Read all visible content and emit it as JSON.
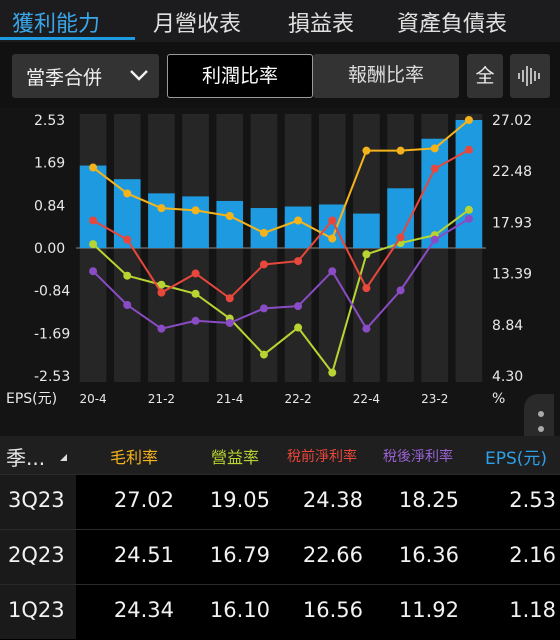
{
  "tabs": [
    {
      "label": "獲利能力",
      "active": true
    },
    {
      "label": "月營收表",
      "active": false
    },
    {
      "label": "損益表",
      "active": false
    },
    {
      "label": "資產負債表",
      "active": false
    }
  ],
  "controls": {
    "dropdown_value": "當季合併",
    "segment_active": "利潤比率",
    "segment_inactive": "報酬比率",
    "full_label": "全"
  },
  "chart_data": {
    "type": "bar+line",
    "categories": [
      "20-4",
      "21-1",
      "21-2",
      "21-3",
      "21-4",
      "22-1",
      "22-2",
      "22-3",
      "22-4",
      "23-1",
      "23-2",
      "23-3"
    ],
    "x_tick_labels": [
      "20-4",
      "21-2",
      "21-4",
      "22-2",
      "22-4",
      "23-2"
    ],
    "left_axis": {
      "ticks": [
        "2.53",
        "1.69",
        "0.84",
        "0.00",
        "-0.84",
        "-1.69",
        "-2.53"
      ],
      "unit": "EPS(元)",
      "ylim": [
        -2.53,
        2.53
      ]
    },
    "right_axis": {
      "ticks": [
        "27.02",
        "22.48",
        "17.93",
        "13.39",
        "8.84",
        "4.30"
      ],
      "unit": "%",
      "ylim": [
        4.3,
        27.02
      ]
    },
    "bars": {
      "name": "EPS(元)",
      "color": "#1e9be0",
      "values": [
        1.63,
        1.36,
        1.08,
        1.02,
        0.93,
        0.79,
        0.82,
        0.86,
        0.68,
        1.18,
        2.16,
        2.53
      ]
    },
    "series": [
      {
        "name": "毛利率",
        "color": "#f5b31b",
        "values": [
          22.8,
          20.5,
          19.2,
          19.0,
          18.5,
          17.0,
          18.1,
          16.5,
          24.3,
          24.3,
          24.5,
          27.02
        ]
      },
      {
        "name": "營益率",
        "color": "#b8d432",
        "values": [
          16.0,
          13.2,
          12.4,
          11.6,
          9.4,
          6.2,
          8.6,
          4.6,
          15.1,
          16.1,
          16.8,
          19.05
        ]
      },
      {
        "name": "稅前淨利率",
        "color": "#e8473c",
        "values": [
          18.1,
          16.4,
          11.7,
          13.4,
          11.2,
          14.2,
          14.5,
          18.1,
          12.1,
          16.6,
          22.7,
          24.38
        ]
      },
      {
        "name": "稅後淨利率",
        "color": "#8a4cc4",
        "values": [
          13.6,
          10.6,
          8.5,
          9.2,
          9.0,
          10.3,
          10.5,
          13.6,
          8.5,
          11.9,
          16.4,
          18.25
        ]
      }
    ]
  },
  "table": {
    "first_header": "季...",
    "headers": [
      {
        "label": "毛利率",
        "color": "#f5b31b"
      },
      {
        "label": "營益率",
        "color": "#b8d432"
      },
      {
        "label": "稅前淨利率",
        "color": "#e8473c"
      },
      {
        "label": "稅後淨利率",
        "color": "#9a62d4"
      },
      {
        "label": "EPS(元)",
        "color": "#2f9fe6"
      }
    ],
    "rows": [
      {
        "quarter": "3Q23",
        "values": [
          "27.02",
          "19.05",
          "24.38",
          "18.25",
          "2.53"
        ]
      },
      {
        "quarter": "2Q23",
        "values": [
          "24.51",
          "16.79",
          "22.66",
          "16.36",
          "2.16"
        ]
      },
      {
        "quarter": "1Q23",
        "values": [
          "24.34",
          "16.10",
          "16.56",
          "11.92",
          "1.18"
        ]
      }
    ]
  }
}
